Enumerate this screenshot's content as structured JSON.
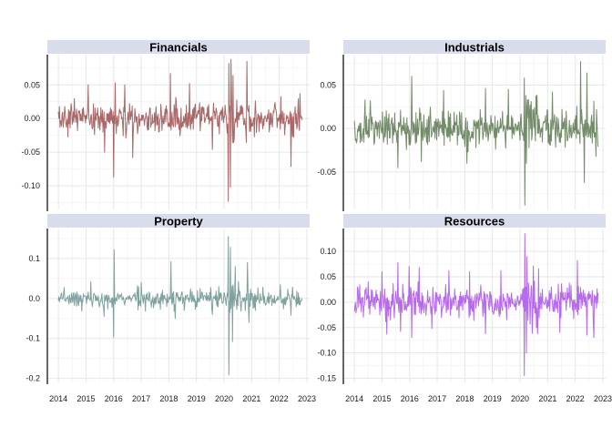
{
  "chart_data": [
    {
      "type": "line",
      "title": "Financials",
      "color": "#8B2E2E",
      "x_range": [
        "2014-01",
        "2022-11"
      ],
      "xlim": [
        2013.6,
        2023.1
      ],
      "ylim": [
        -0.135,
        0.095
      ],
      "yticks": [
        -0.1,
        -0.05,
        0.0,
        0.05
      ],
      "ytick_labels": [
        "-0.10",
        "-0.05",
        "0.00",
        "0.05"
      ],
      "xtick_labels": [],
      "xticks": [
        2014,
        2015,
        2016,
        2017,
        2018,
        2019,
        2020,
        2021,
        2022,
        2023
      ],
      "grid": true,
      "base_sd": 0.011,
      "events": [
        {
          "x": "2015-02",
          "value": 0.05
        },
        {
          "x": "2015-09",
          "value": -0.05
        },
        {
          "x": "2016-01",
          "value": -0.087
        },
        {
          "x": "2016-02",
          "value": 0.053
        },
        {
          "x": "2016-06",
          "value": 0.05
        },
        {
          "x": "2016-09",
          "value": -0.058
        },
        {
          "x": "2018-02",
          "value": 0.067
        },
        {
          "x": "2018-10",
          "value": 0.052
        },
        {
          "x": "2019-08",
          "value": -0.046
        },
        {
          "x": "2020-03",
          "value": 0.082
        },
        {
          "x": "2020-03",
          "value": -0.123
        },
        {
          "x": "2020-04",
          "value": 0.088
        },
        {
          "x": "2020-04",
          "value": -0.102
        },
        {
          "x": "2020-05",
          "value": 0.064
        },
        {
          "x": "2020-11",
          "value": 0.085
        },
        {
          "x": "2022-06",
          "value": -0.071
        },
        {
          "x": "2022-10",
          "value": 0.037
        }
      ]
    },
    {
      "type": "line",
      "title": "Industrials",
      "color": "#3E5F30",
      "x_range": [
        "2014-01",
        "2022-11"
      ],
      "xlim": [
        2013.6,
        2023.1
      ],
      "ylim": [
        -0.093,
        0.085
      ],
      "yticks": [
        -0.05,
        0.0,
        0.05
      ],
      "ytick_labels": [
        "-0.05",
        "0.00",
        "0.05"
      ],
      "xtick_labels": [],
      "xticks": [
        2014,
        2015,
        2016,
        2017,
        2018,
        2019,
        2020,
        2021,
        2022,
        2023
      ],
      "grid": true,
      "base_sd": 0.011,
      "events": [
        {
          "x": "2014-08",
          "value": 0.032
        },
        {
          "x": "2015-08",
          "value": -0.045
        },
        {
          "x": "2016-02",
          "value": 0.06
        },
        {
          "x": "2016-06",
          "value": -0.038
        },
        {
          "x": "2017-04",
          "value": 0.044
        },
        {
          "x": "2018-02",
          "value": -0.04
        },
        {
          "x": "2018-10",
          "value": 0.046
        },
        {
          "x": "2019-08",
          "value": 0.045
        },
        {
          "x": "2020-03",
          "value": -0.088
        },
        {
          "x": "2020-03",
          "value": 0.058
        },
        {
          "x": "2020-04",
          "value": -0.04
        },
        {
          "x": "2021-03",
          "value": 0.042
        },
        {
          "x": "2022-03",
          "value": 0.077
        },
        {
          "x": "2022-05",
          "value": -0.062
        },
        {
          "x": "2022-06",
          "value": 0.064
        },
        {
          "x": "2022-10",
          "value": -0.032
        }
      ]
    },
    {
      "type": "line",
      "title": "Property",
      "color": "#4F7F7A",
      "x_range": [
        "2014-01",
        "2022-11"
      ],
      "xlim": [
        2013.6,
        2023.1
      ],
      "ylim": [
        -0.21,
        0.175
      ],
      "yticks": [
        -0.2,
        -0.1,
        0.0,
        0.1
      ],
      "ytick_labels": [
        "-0.2",
        "-0.1",
        "0.0",
        "0.1"
      ],
      "xtick_labels": [
        "2014",
        "2015",
        "2016",
        "2017",
        "2018",
        "2019",
        "2020",
        "2021",
        "2022",
        "2023"
      ],
      "xticks": [
        2014,
        2015,
        2016,
        2017,
        2018,
        2019,
        2020,
        2021,
        2022,
        2023
      ],
      "grid": true,
      "base_sd": 0.011,
      "events": [
        {
          "x": "2015-03",
          "value": 0.042
        },
        {
          "x": "2015-09",
          "value": -0.045
        },
        {
          "x": "2016-01",
          "value": 0.122
        },
        {
          "x": "2016-01",
          "value": -0.097
        },
        {
          "x": "2017-01",
          "value": 0.04
        },
        {
          "x": "2018-02",
          "value": 0.092
        },
        {
          "x": "2018-04",
          "value": -0.05
        },
        {
          "x": "2019-08",
          "value": -0.04
        },
        {
          "x": "2020-03",
          "value": 0.155
        },
        {
          "x": "2020-03",
          "value": -0.192
        },
        {
          "x": "2020-04",
          "value": 0.128
        },
        {
          "x": "2020-05",
          "value": -0.108
        },
        {
          "x": "2020-06",
          "value": 0.08
        },
        {
          "x": "2020-11",
          "value": 0.09
        },
        {
          "x": "2020-12",
          "value": -0.06
        },
        {
          "x": "2022-06",
          "value": -0.042
        }
      ]
    },
    {
      "type": "line",
      "title": "Resources",
      "color": "#9B30E8",
      "x_range": [
        "2014-01",
        "2022-11"
      ],
      "xlim": [
        2013.6,
        2023.1
      ],
      "ylim": [
        -0.158,
        0.145
      ],
      "yticks": [
        -0.15,
        -0.1,
        -0.05,
        0.0,
        0.05,
        0.1
      ],
      "ytick_labels": [
        "-0.15",
        "-0.10",
        "-0.05",
        "0.00",
        "0.05",
        "0.10"
      ],
      "xtick_labels": [
        "2014",
        "2015",
        "2016",
        "2017",
        "2018",
        "2019",
        "2020",
        "2021",
        "2022",
        "2023"
      ],
      "xticks": [
        2014,
        2015,
        2016,
        2017,
        2018,
        2019,
        2020,
        2021,
        2022,
        2023
      ],
      "grid": true,
      "base_sd": 0.016,
      "events": [
        {
          "x": "2015-01",
          "value": 0.06
        },
        {
          "x": "2015-03",
          "value": -0.063
        },
        {
          "x": "2015-08",
          "value": 0.078
        },
        {
          "x": "2015-09",
          "value": -0.058
        },
        {
          "x": "2016-01",
          "value": 0.07
        },
        {
          "x": "2016-02",
          "value": -0.07
        },
        {
          "x": "2016-05",
          "value": 0.068
        },
        {
          "x": "2016-11",
          "value": -0.052
        },
        {
          "x": "2017-06",
          "value": 0.062
        },
        {
          "x": "2018-03",
          "value": 0.06
        },
        {
          "x": "2018-10",
          "value": -0.062
        },
        {
          "x": "2019-05",
          "value": 0.062
        },
        {
          "x": "2020-03",
          "value": 0.135
        },
        {
          "x": "2020-03",
          "value": -0.145
        },
        {
          "x": "2020-04",
          "value": 0.09
        },
        {
          "x": "2020-04",
          "value": -0.1
        },
        {
          "x": "2021-06",
          "value": -0.06
        },
        {
          "x": "2022-02",
          "value": 0.082
        },
        {
          "x": "2022-06",
          "value": -0.065
        },
        {
          "x": "2022-09",
          "value": -0.07
        }
      ]
    }
  ]
}
